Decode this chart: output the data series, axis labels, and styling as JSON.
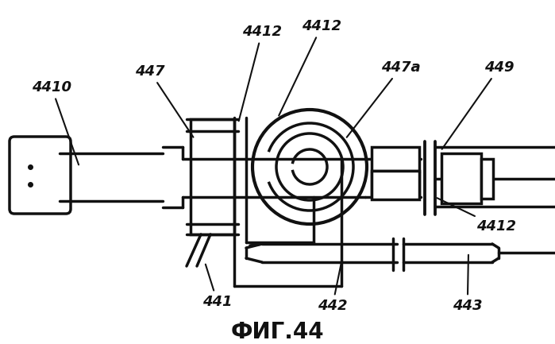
{
  "title": "ФИГ.44",
  "background_color": "#ffffff",
  "line_color": "#111111",
  "title_fontsize": 20
}
